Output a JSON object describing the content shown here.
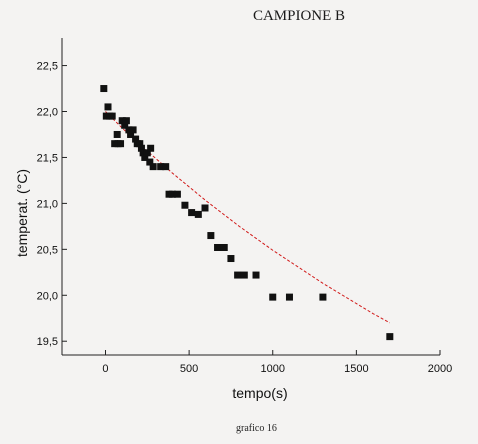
{
  "caption": "grafico 16",
  "chart_data": {
    "type": "scatter",
    "title": "CAMPIONE B",
    "xlabel": "tempo(s)",
    "ylabel": "temperat. (°C)",
    "xlim": [
      -260,
      2000
    ],
    "ylim": [
      19.35,
      22.8
    ],
    "x_ticks": [
      0,
      500,
      1000,
      1500,
      2000
    ],
    "x_tick_labels": [
      "0",
      "500",
      "1000",
      "1500",
      "2000"
    ],
    "y_ticks": [
      19.5,
      20.0,
      20.5,
      21.0,
      21.5,
      22.0,
      22.5
    ],
    "y_tick_labels": [
      "19,5",
      "20,0",
      "20,5",
      "21,0",
      "21,5",
      "22,0",
      "22,5"
    ],
    "grid": false,
    "colors": {
      "points": "#111111",
      "fit": "#d11a1a",
      "axes": "#222222"
    },
    "series": [
      {
        "marker": "square",
        "points": [
          [
            -10,
            22.25
          ],
          [
            5,
            21.95
          ],
          [
            15,
            22.05
          ],
          [
            25,
            21.95
          ],
          [
            40,
            21.95
          ],
          [
            55,
            21.65
          ],
          [
            70,
            21.75
          ],
          [
            75,
            21.65
          ],
          [
            90,
            21.65
          ],
          [
            100,
            21.9
          ],
          [
            115,
            21.85
          ],
          [
            125,
            21.9
          ],
          [
            140,
            21.8
          ],
          [
            150,
            21.75
          ],
          [
            165,
            21.8
          ],
          [
            180,
            21.7
          ],
          [
            190,
            21.65
          ],
          [
            205,
            21.65
          ],
          [
            215,
            21.6
          ],
          [
            225,
            21.55
          ],
          [
            235,
            21.5
          ],
          [
            250,
            21.55
          ],
          [
            265,
            21.45
          ],
          [
            270,
            21.6
          ],
          [
            285,
            21.4
          ],
          [
            330,
            21.4
          ],
          [
            360,
            21.4
          ],
          [
            380,
            21.1
          ],
          [
            400,
            21.1
          ],
          [
            430,
            21.1
          ],
          [
            475,
            20.98
          ],
          [
            515,
            20.9
          ],
          [
            555,
            20.88
          ],
          [
            595,
            20.95
          ],
          [
            630,
            20.65
          ],
          [
            670,
            20.52
          ],
          [
            710,
            20.52
          ],
          [
            750,
            20.4
          ],
          [
            790,
            20.22
          ],
          [
            830,
            20.22
          ],
          [
            900,
            20.22
          ],
          [
            1000,
            19.98
          ],
          [
            1100,
            19.98
          ],
          [
            1300,
            19.98
          ],
          [
            1700,
            19.55
          ]
        ]
      },
      {
        "type": "line",
        "style": "dashed",
        "fit": "exponential decay",
        "x": [
          0,
          100,
          200,
          300,
          400,
          500,
          600,
          700,
          800,
          900,
          1000,
          1100,
          1200,
          1300,
          1400,
          1500,
          1600,
          1700
        ],
        "y": [
          22.0,
          21.82,
          21.65,
          21.49,
          21.33,
          21.18,
          21.03,
          20.89,
          20.75,
          20.62,
          20.49,
          20.37,
          20.25,
          20.13,
          20.02,
          19.91,
          19.8,
          19.7
        ]
      }
    ]
  }
}
